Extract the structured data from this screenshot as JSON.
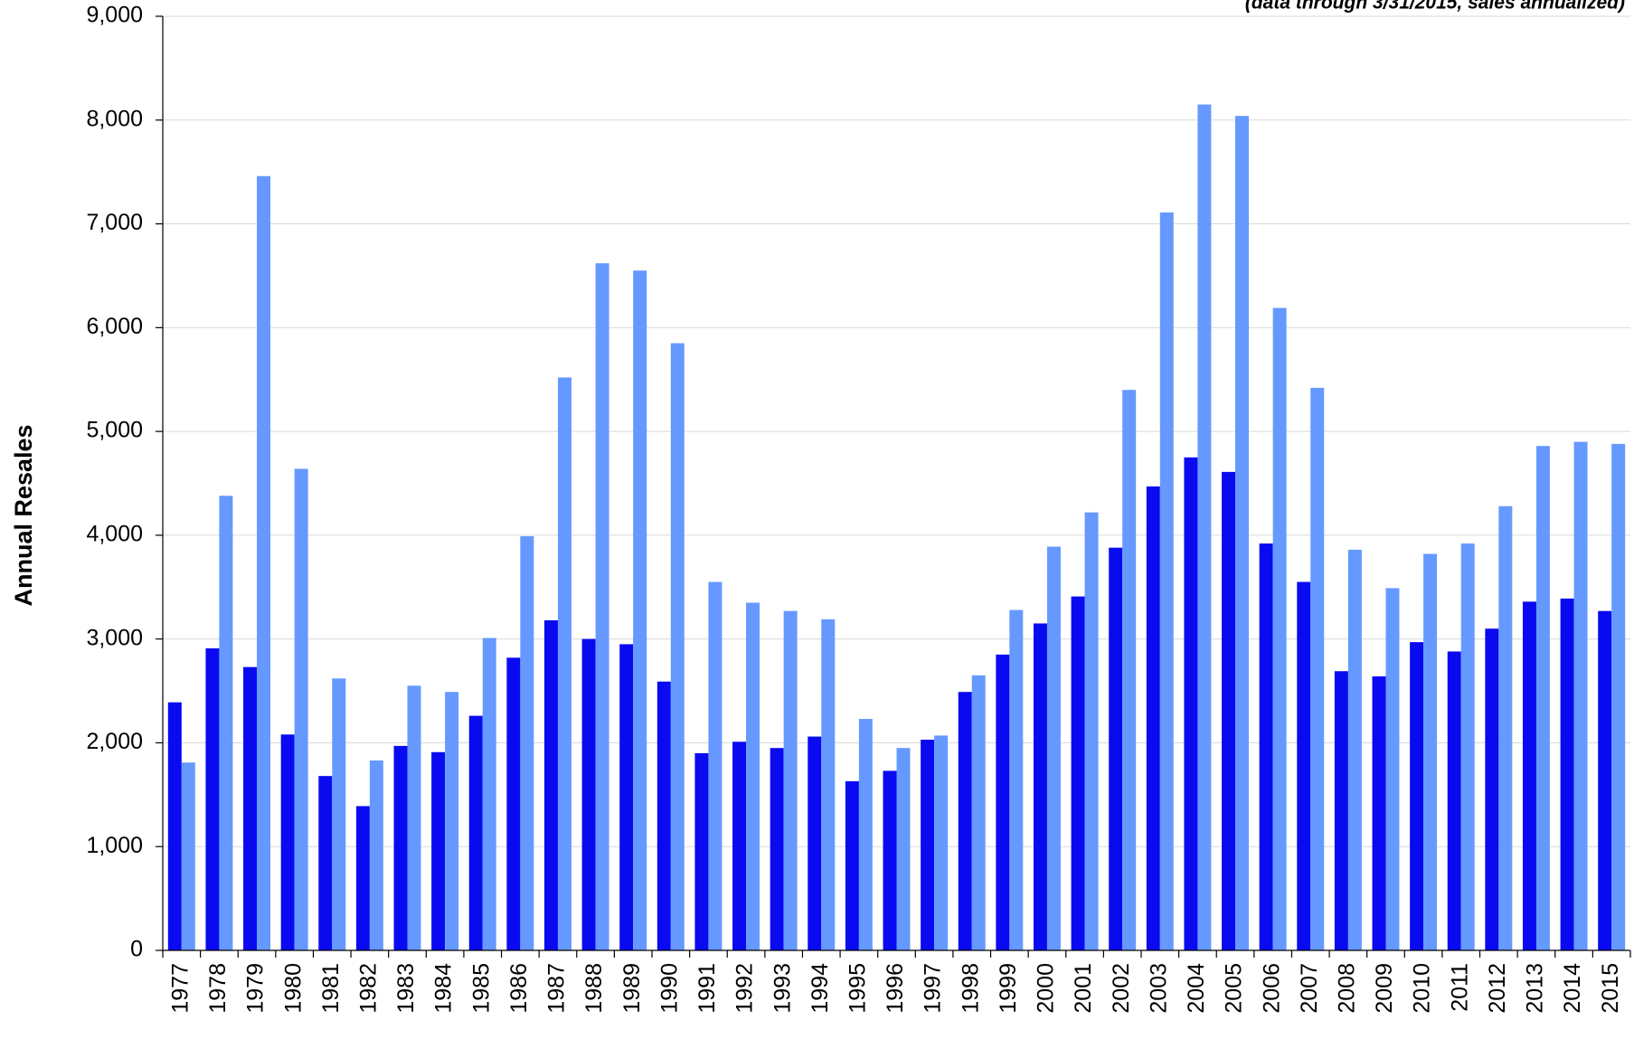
{
  "chart_data": {
    "type": "bar",
    "subtitle": "(data through 3/31/2015, sales annualized)",
    "y_label": "Annual Resales",
    "categories": [
      "1977",
      "1978",
      "1979",
      "1980",
      "1981",
      "1982",
      "1983",
      "1984",
      "1985",
      "1986",
      "1987",
      "1988",
      "1989",
      "1990",
      "1991",
      "1992",
      "1993",
      "1994",
      "1995",
      "1996",
      "1997",
      "1998",
      "1999",
      "2000",
      "2001",
      "2002",
      "2003",
      "2004",
      "2005",
      "2006",
      "2007",
      "2008",
      "2009",
      "2010",
      "2011",
      "2012",
      "2013",
      "2014",
      "2015"
    ],
    "series": [
      {
        "color": "#0a0af0",
        "values": [
          2390,
          2910,
          2730,
          2080,
          1680,
          1390,
          1970,
          1910,
          2260,
          2820,
          3180,
          3000,
          2950,
          2590,
          1900,
          2010,
          1950,
          2060,
          1630,
          1730,
          2030,
          2490,
          2850,
          3150,
          3410,
          3880,
          4470,
          4750,
          4610,
          3920,
          3550,
          2690,
          2640,
          2970,
          2880,
          3100,
          3360,
          3390,
          3270
        ]
      },
      {
        "color": "#6699ff",
        "values": [
          1810,
          4380,
          7460,
          4640,
          2620,
          1830,
          2550,
          2490,
          3010,
          3990,
          5520,
          6620,
          6550,
          5850,
          3550,
          3350,
          3270,
          3190,
          2230,
          1950,
          2070,
          2650,
          3280,
          3890,
          4220,
          5400,
          7110,
          8150,
          8040,
          6190,
          5420,
          3860,
          3490,
          3820,
          3920,
          4280,
          4860,
          4900,
          4880
        ]
      }
    ],
    "ylim": [
      0,
      9000
    ],
    "yticks": [
      0,
      {
        "value": 1000,
        "label": "1,000"
      },
      {
        "value": 2000,
        "label": "2,000"
      },
      {
        "value": 3000,
        "label": "3,000"
      },
      {
        "value": 4000,
        "label": "4,000"
      },
      {
        "value": 5000,
        "label": "5,000"
      },
      {
        "value": 6000,
        "label": "6,000"
      },
      {
        "value": 7000,
        "label": "7,000"
      },
      {
        "value": 8000,
        "label": "8,000"
      },
      {
        "value": 9000,
        "label": "9,000"
      }
    ],
    "grid": true
  }
}
